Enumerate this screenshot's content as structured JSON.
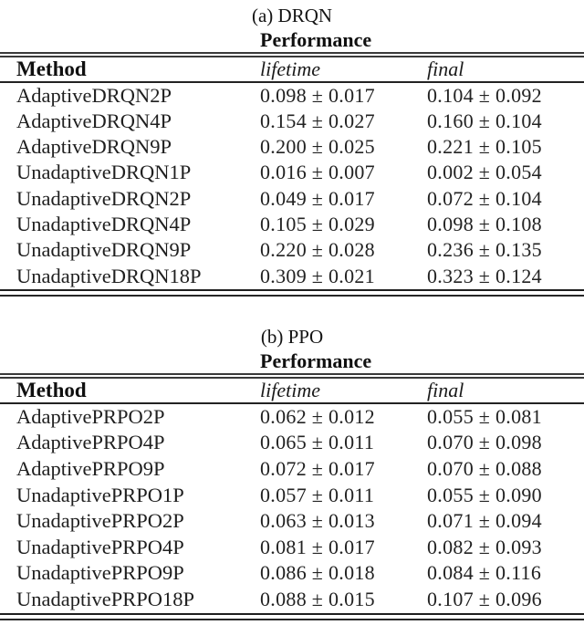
{
  "page": {
    "background_color": "#ffffff",
    "text_color": "#1b1b1b"
  },
  "tables": [
    {
      "caption": "(a) DRQN",
      "group_header": "Performance",
      "columns": [
        "Method",
        "lifetime",
        "final"
      ],
      "rows": [
        {
          "method": "AdaptiveDRQN2P",
          "lifetime": "0.098 ± 0.017",
          "final": "0.104 ± 0.092"
        },
        {
          "method": "AdaptiveDRQN4P",
          "lifetime": "0.154 ± 0.027",
          "final": "0.160 ± 0.104"
        },
        {
          "method": "AdaptiveDRQN9P",
          "lifetime": "0.200 ± 0.025",
          "final": "0.221 ± 0.105"
        },
        {
          "method": "UnadaptiveDRQN1P",
          "lifetime": "0.016 ± 0.007",
          "final": "0.002 ± 0.054"
        },
        {
          "method": "UnadaptiveDRQN2P",
          "lifetime": "0.049 ± 0.017",
          "final": "0.072 ± 0.104"
        },
        {
          "method": "UnadaptiveDRQN4P",
          "lifetime": "0.105 ± 0.029",
          "final": "0.098 ± 0.108"
        },
        {
          "method": "UnadaptiveDRQN9P",
          "lifetime": "0.220 ± 0.028",
          "final": "0.236 ± 0.135"
        },
        {
          "method": "UnadaptiveDRQN18P",
          "lifetime": "0.309 ± 0.021",
          "final": "0.323 ± 0.124"
        }
      ]
    },
    {
      "caption": "(b) PPO",
      "group_header": "Performance",
      "columns": [
        "Method",
        "lifetime",
        "final"
      ],
      "rows": [
        {
          "method": "AdaptivePRPO2P",
          "lifetime": "0.062 ± 0.012",
          "final": "0.055 ± 0.081"
        },
        {
          "method": "AdaptivePRPO4P",
          "lifetime": "0.065 ± 0.011",
          "final": "0.070 ± 0.098"
        },
        {
          "method": "AdaptivePRPO9P",
          "lifetime": "0.072 ± 0.017",
          "final": "0.070 ± 0.088"
        },
        {
          "method": "UnadaptivePRPO1P",
          "lifetime": "0.057 ± 0.011",
          "final": "0.055 ± 0.090"
        },
        {
          "method": "UnadaptivePRPO2P",
          "lifetime": "0.063 ± 0.013",
          "final": "0.071 ± 0.094"
        },
        {
          "method": "UnadaptivePRPO4P",
          "lifetime": "0.081 ± 0.017",
          "final": "0.082 ± 0.093"
        },
        {
          "method": "UnadaptivePRPO9P",
          "lifetime": "0.086 ± 0.018",
          "final": "0.084 ± 0.116"
        },
        {
          "method": "UnadaptivePRPO18P",
          "lifetime": "0.088 ± 0.015",
          "final": "0.107 ± 0.096"
        }
      ]
    }
  ]
}
